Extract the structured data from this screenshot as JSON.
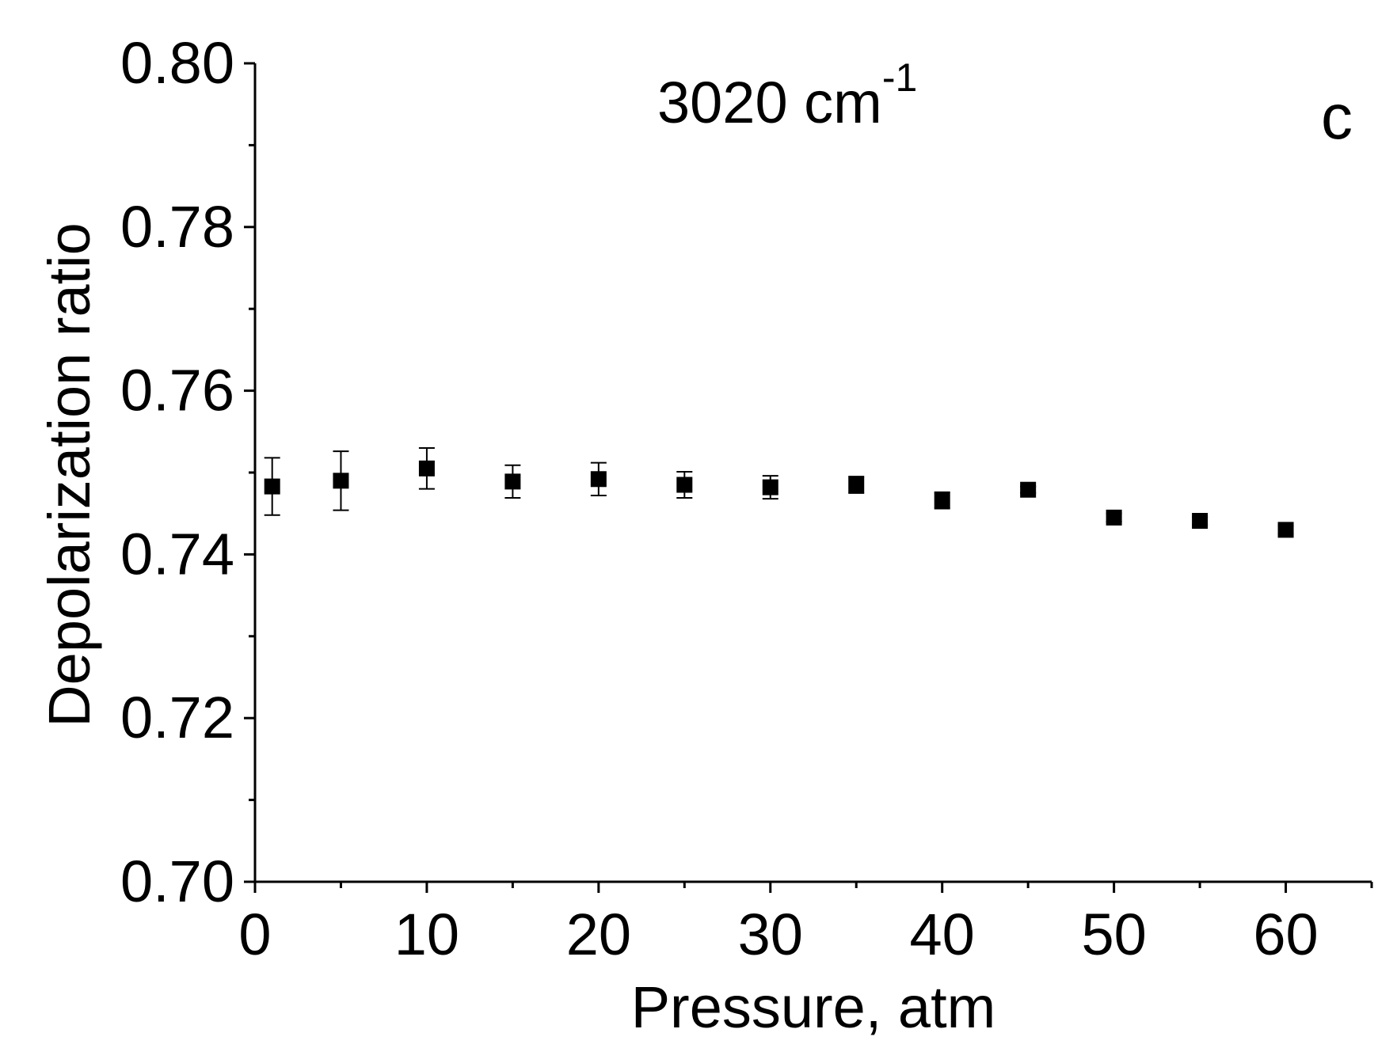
{
  "chart_data": {
    "type": "scatter",
    "title_main": "3020 cm",
    "title_sup": "-1",
    "panel_label": "c",
    "xlabel": "Pressure, atm",
    "ylabel": "Depolarization ratio",
    "xlim": [
      0,
      65
    ],
    "ylim": [
      0.7,
      0.8
    ],
    "x_ticks": [
      0,
      10,
      20,
      30,
      40,
      50,
      60
    ],
    "x_tick_labels": [
      "0",
      "10",
      "20",
      "30",
      "40",
      "50",
      "60"
    ],
    "x_minor_ticks": [
      5,
      15,
      25,
      35,
      45,
      55,
      65
    ],
    "y_ticks": [
      0.7,
      0.72,
      0.74,
      0.76,
      0.78,
      0.8
    ],
    "y_tick_labels": [
      "0.70",
      "0.72",
      "0.74",
      "0.76",
      "0.78",
      "0.80"
    ],
    "y_minor_ticks": [
      0.71,
      0.73,
      0.75,
      0.77,
      0.79
    ],
    "grid": false,
    "legend": "none",
    "marker": "square",
    "color": "#000000",
    "series": [
      {
        "x": [
          1,
          5,
          10,
          15,
          20,
          25,
          30,
          35,
          40,
          45,
          50,
          55,
          60
        ],
        "y": [
          0.7483,
          0.749,
          0.7505,
          0.7489,
          0.7492,
          0.7485,
          0.7482,
          0.7485,
          0.7466,
          0.7479,
          0.7445,
          0.7441,
          0.743
        ],
        "err": [
          0.0035,
          0.0036,
          0.0025,
          0.002,
          0.002,
          0.0016,
          0.0014,
          0.001,
          0.001,
          0.0004,
          0.0005,
          0.0005,
          0.0005
        ]
      }
    ]
  }
}
